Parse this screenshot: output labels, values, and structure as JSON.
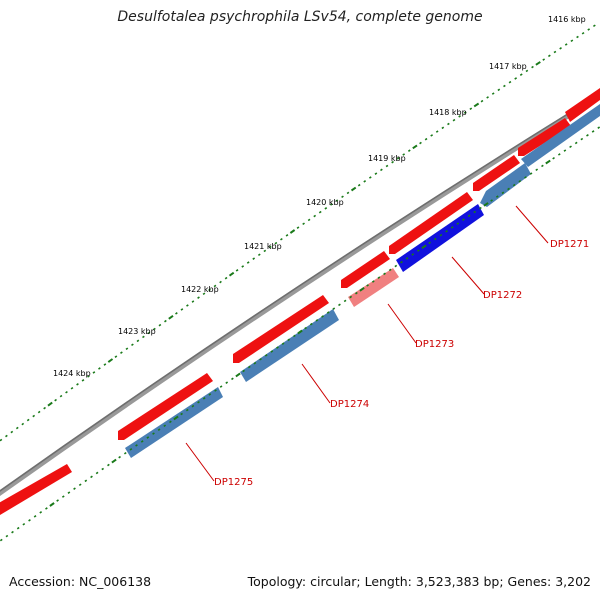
{
  "title": "Desulfotalea psychrophila LSv54, complete genome",
  "accession": "Accession: NC_006138",
  "summary": "Topology: circular; Length: 3,523,383 bp; Genes: 3,202",
  "colors": {
    "backbone": "#888888",
    "tick": "#1a7a1a",
    "cds_forward": "#ee1111",
    "cds_reverse": "#4a7fb5",
    "highlight_reverse": "#1111dd",
    "faded_forward": "#f08080",
    "label": "#cc0000"
  },
  "scale_labels": [
    "1416 kbp",
    "1417 kbp",
    "1418 kbp",
    "1419 kbp",
    "1420 kbp",
    "1421 kbp",
    "1422 kbp",
    "1423 kbp",
    "1424 kbp"
  ],
  "gene_labels": [
    "DP1271",
    "DP1272",
    "DP1273",
    "DP1274",
    "DP1275"
  ]
}
